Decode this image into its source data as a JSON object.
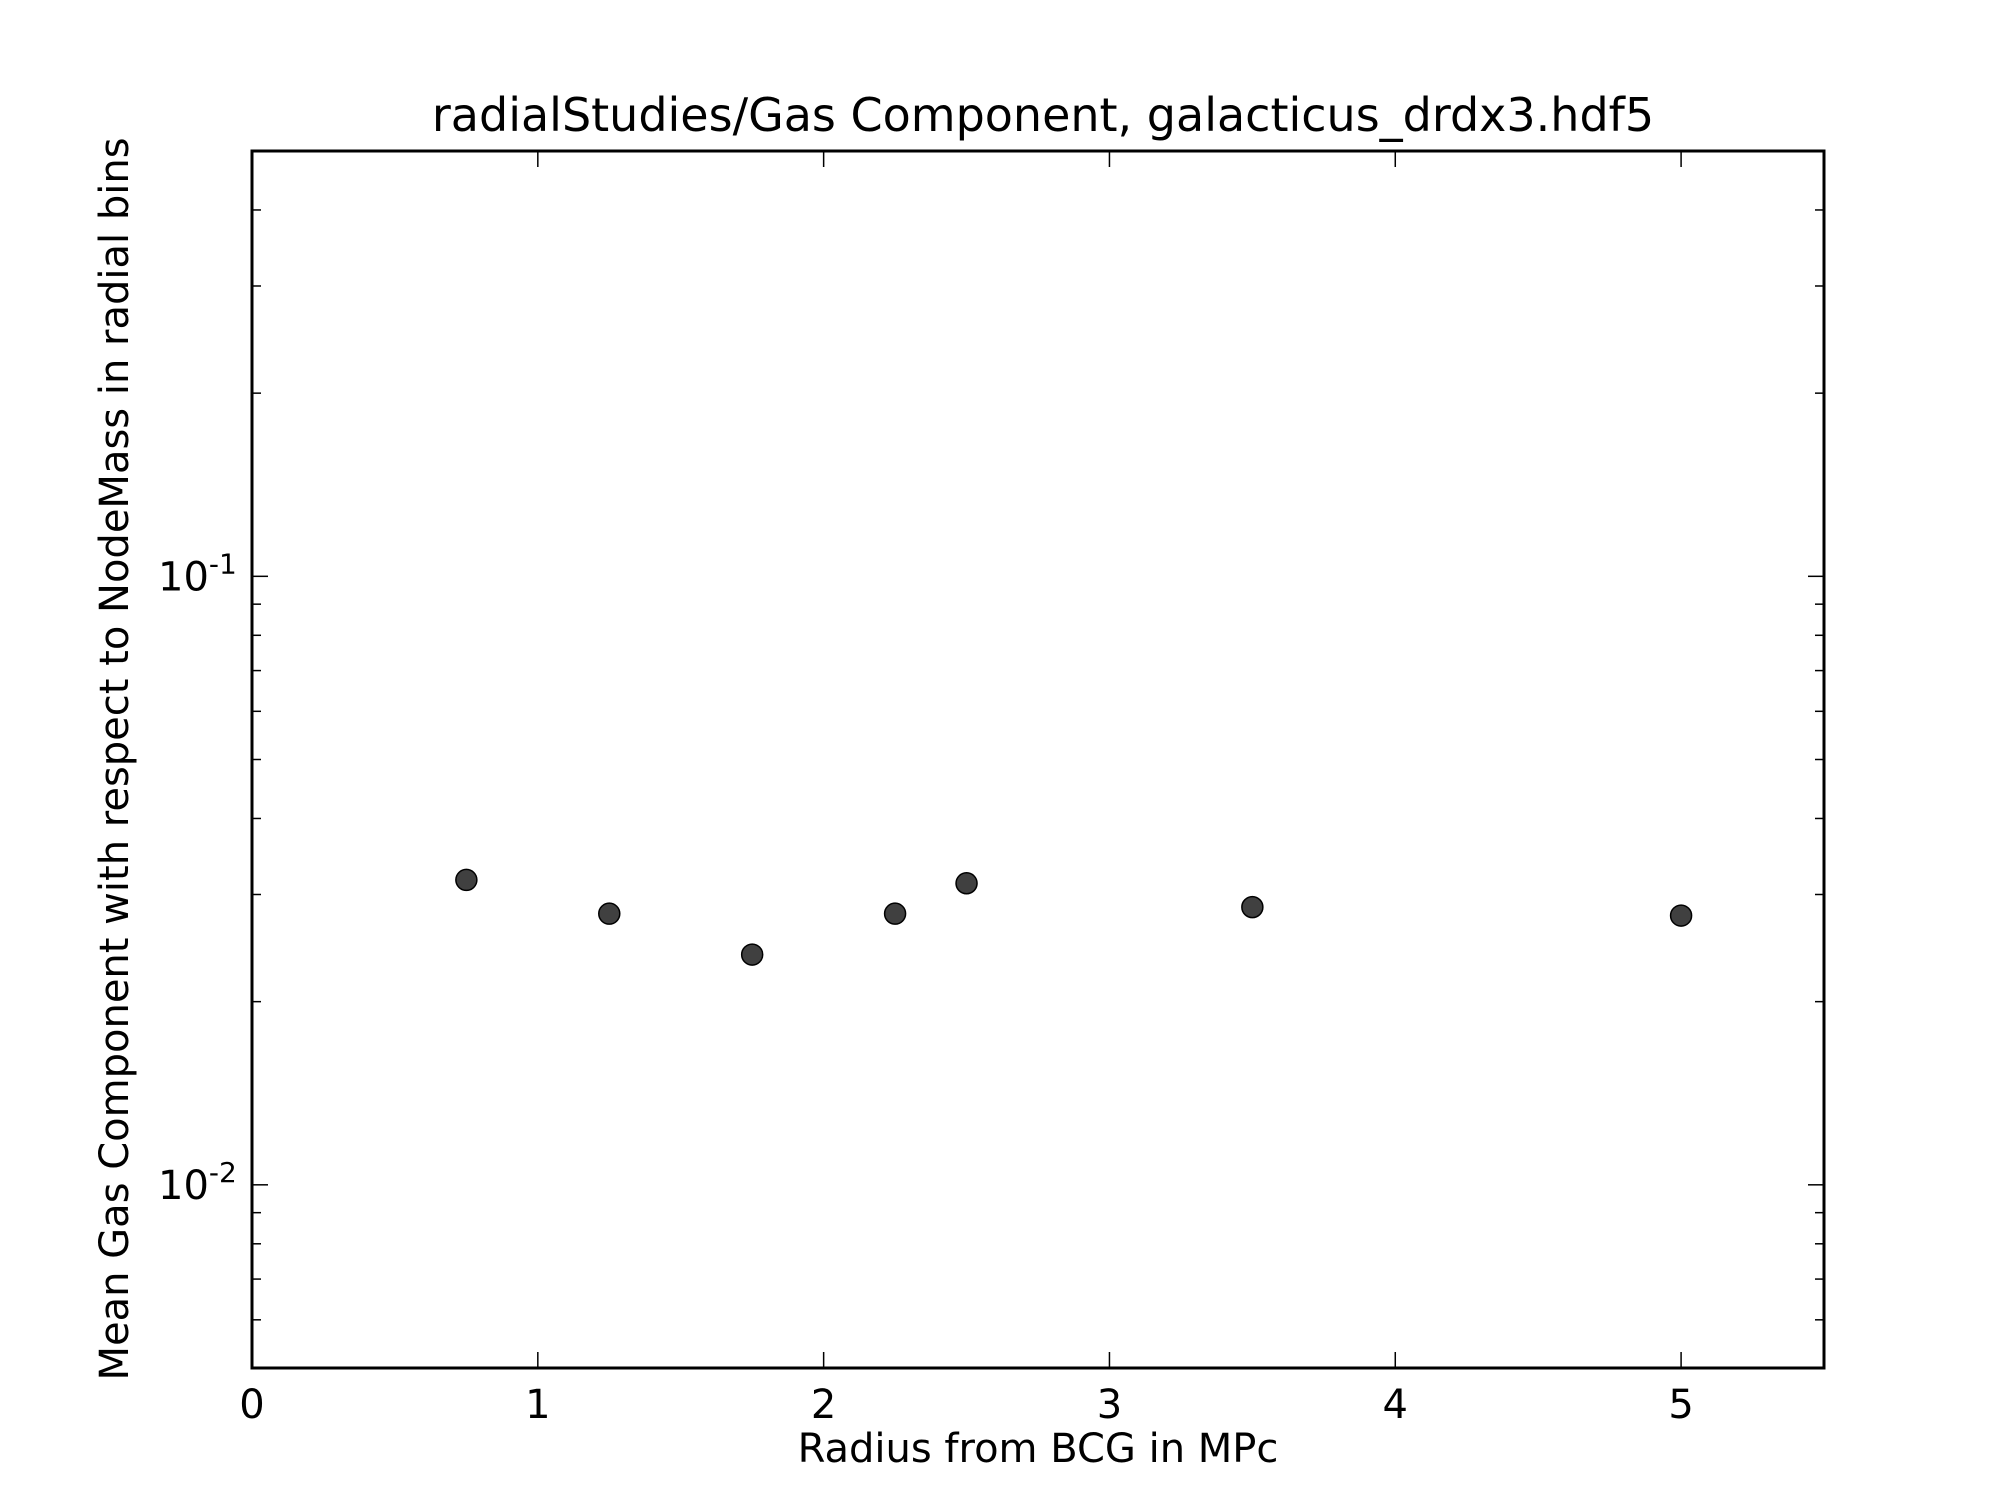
{
  "chart_data": {
    "type": "scatter",
    "title": "radialStudies/Gas Component, galacticus_drdx3.hdf5",
    "xlabel": "Radius from BCG in MPc",
    "ylabel": "Mean Gas Component with respect to NodeMass in radial bins",
    "xlim": [
      0,
      5.5
    ],
    "ylim": [
      0.005,
      0.5
    ],
    "yscale": "log",
    "xticks": [
      "0",
      "1",
      "2",
      "3",
      "4",
      "5"
    ],
    "yticks": [
      {
        "value": 0.1,
        "base": "10",
        "exp": "-1"
      },
      {
        "value": 0.01,
        "base": "10",
        "exp": "-2"
      }
    ],
    "grid": false,
    "marker_color": "#404040",
    "series": [
      {
        "x": [
          0.75,
          1.25,
          1.75,
          2.25,
          2.5,
          3.5,
          5.0
        ],
        "y": [
          0.0317,
          0.0279,
          0.0239,
          0.0279,
          0.0313,
          0.0286,
          0.0277
        ]
      }
    ]
  }
}
